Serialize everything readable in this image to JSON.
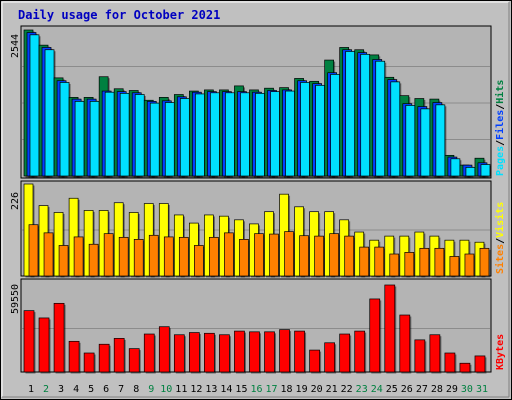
{
  "page": {
    "title": "Daily usage for October 2021"
  },
  "colors": {
    "background": "#c0c0c0",
    "plot_bg": "#b4b4b4",
    "hits": "#008040",
    "files": "#0040ff",
    "pages": "#00e0ff",
    "visits": "#ffff00",
    "sites": "#ff8000",
    "kbytes": "#ff0000",
    "title": "#0000c0"
  },
  "chart_data": [
    {
      "type": "bar",
      "title": "Daily usage for October 2021",
      "panel": "hits-files-pages",
      "ymax_label": "2544",
      "ylim": [
        0,
        2544
      ],
      "grid": true,
      "legend": [
        {
          "text": "Pages",
          "color": "#00e0ff"
        },
        {
          "text": "/",
          "color": "#000000"
        },
        {
          "text": "Files",
          "color": "#0040ff"
        },
        {
          "text": "/",
          "color": "#000000"
        },
        {
          "text": "Hits",
          "color": "#008040"
        }
      ],
      "categories": [
        "1",
        "2",
        "3",
        "4",
        "5",
        "6",
        "7",
        "8",
        "9",
        "10",
        "11",
        "12",
        "13",
        "14",
        "15",
        "16",
        "17",
        "18",
        "19",
        "20",
        "21",
        "22",
        "23",
        "24",
        "25",
        "26",
        "27",
        "28",
        "29",
        "30",
        "31"
      ],
      "series": [
        {
          "name": "Hits",
          "color": "#008040",
          "values": [
            2544,
            2280,
            1710,
            1370,
            1370,
            1730,
            1520,
            1490,
            1320,
            1370,
            1420,
            1480,
            1500,
            1500,
            1570,
            1500,
            1530,
            1540,
            1700,
            1650,
            2020,
            2240,
            2200,
            2110,
            1720,
            1400,
            1350,
            1340,
            360,
            190,
            310
          ]
        },
        {
          "name": "Files",
          "color": "#0040ff",
          "values": [
            2500,
            2240,
            1660,
            1340,
            1340,
            1480,
            1470,
            1450,
            1300,
            1310,
            1380,
            1460,
            1470,
            1470,
            1470,
            1460,
            1490,
            1500,
            1660,
            1610,
            1800,
            2200,
            2150,
            2030,
            1680,
            1260,
            1210,
            1280,
            330,
            190,
            230
          ]
        },
        {
          "name": "Pages",
          "color": "#00e0ff",
          "values": [
            2460,
            2200,
            1630,
            1300,
            1300,
            1460,
            1440,
            1420,
            1270,
            1280,
            1350,
            1430,
            1450,
            1450,
            1450,
            1440,
            1470,
            1480,
            1630,
            1580,
            1770,
            2170,
            2120,
            2000,
            1640,
            1230,
            1170,
            1240,
            300,
            150,
            200
          ]
        }
      ]
    },
    {
      "type": "bar",
      "panel": "visits-sites",
      "ymax_label": "226",
      "ylim": [
        0,
        226
      ],
      "grid": true,
      "legend": [
        {
          "text": "Sites",
          "color": "#ff8000"
        },
        {
          "text": "/",
          "color": "#000000"
        },
        {
          "text": "Visits",
          "color": "#ffff00"
        }
      ],
      "categories": [
        "1",
        "2",
        "3",
        "4",
        "5",
        "6",
        "7",
        "8",
        "9",
        "10",
        "11",
        "12",
        "13",
        "14",
        "15",
        "16",
        "17",
        "18",
        "19",
        "20",
        "21",
        "22",
        "23",
        "24",
        "25",
        "26",
        "27",
        "28",
        "29",
        "30",
        "31"
      ],
      "series": [
        {
          "name": "Visits",
          "color": "#ffff00",
          "values": [
            226,
            173,
            156,
            191,
            161,
            161,
            180,
            156,
            178,
            178,
            150,
            130,
            150,
            147,
            138,
            128,
            158,
            201,
            170,
            158,
            158,
            138,
            108,
            88,
            98,
            98,
            108,
            98,
            88,
            88,
            83
          ]
        },
        {
          "name": "Sites",
          "color": "#ff8000",
          "values": [
            126,
            106,
            75,
            96,
            78,
            104,
            95,
            90,
            100,
            96,
            95,
            75,
            95,
            106,
            90,
            104,
            103,
            109,
            99,
            98,
            104,
            98,
            71,
            71,
            54,
            58,
            68,
            68,
            48,
            54,
            68
          ]
        }
      ]
    },
    {
      "type": "bar",
      "panel": "kbytes",
      "ymax_label": "59550",
      "ylim": [
        0,
        59550
      ],
      "grid": true,
      "legend": [
        {
          "text": "KBytes",
          "color": "#ff0000"
        }
      ],
      "categories": [
        "1",
        "2",
        "3",
        "4",
        "5",
        "6",
        "7",
        "8",
        "9",
        "10",
        "11",
        "12",
        "13",
        "14",
        "15",
        "16",
        "17",
        "18",
        "19",
        "20",
        "21",
        "22",
        "23",
        "24",
        "25",
        "26",
        "27",
        "28",
        "29",
        "30",
        "31"
      ],
      "series": [
        {
          "name": "KBytes",
          "color": "#ff0000",
          "values": [
            42000,
            37000,
            47000,
            21000,
            13000,
            19000,
            23000,
            16000,
            26000,
            31000,
            25500,
            27000,
            26500,
            25500,
            28000,
            27500,
            27500,
            29000,
            28000,
            15000,
            20000,
            26000,
            28000,
            50000,
            59550,
            39000,
            22000,
            25500,
            13000,
            6000,
            11000
          ]
        }
      ]
    }
  ],
  "x_axis": {
    "labels": [
      "1",
      "2",
      "3",
      "4",
      "5",
      "6",
      "7",
      "8",
      "9",
      "10",
      "11",
      "12",
      "13",
      "14",
      "15",
      "16",
      "17",
      "18",
      "19",
      "20",
      "21",
      "22",
      "23",
      "24",
      "25",
      "26",
      "27",
      "28",
      "29",
      "30",
      "31"
    ],
    "weekend_indices": [
      1,
      8,
      9,
      15,
      16,
      22,
      23,
      29,
      30
    ],
    "weekday_color": "#000000",
    "weekend_color": "#008040"
  }
}
